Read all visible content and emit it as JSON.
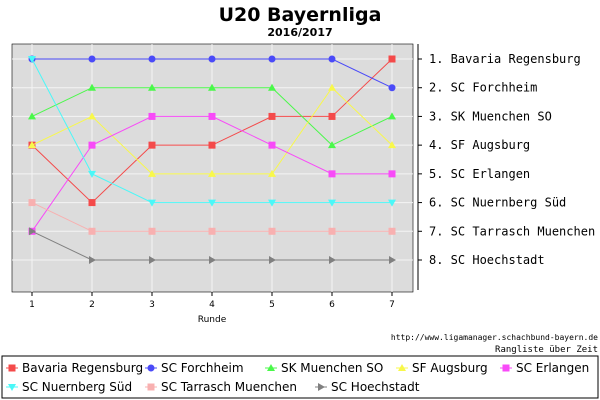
{
  "chart_data": {
    "type": "line",
    "title": "U20 Bayernliga",
    "subtitle": "2016/2017",
    "xlabel": "Runde",
    "ylabel": "",
    "x": [
      1,
      2,
      3,
      4,
      5,
      6,
      7
    ],
    "ylim": [
      1,
      8
    ],
    "y_inverted": true,
    "grid": true,
    "legend_position": "bottom",
    "source_text": "http://www.ligamanager.schachbund-bayern.de",
    "note_text": "Rangliste über Zeit",
    "rank_labels": [
      "1. Bavaria Regensburg",
      "2. SC Forchheim",
      "3. SK Muenchen SO",
      "4. SF Augsburg",
      "5. SC Erlangen",
      "6. SC Nuernberg Süd",
      "7. SC Tarrasch Muenchen",
      "8. SC Hoechstadt"
    ],
    "series": [
      {
        "name": "Bavaria Regensburg",
        "color": "#f44a4a",
        "marker": "square",
        "values": [
          4,
          6,
          4,
          4,
          3,
          3,
          1
        ]
      },
      {
        "name": "SC Forchheim",
        "color": "#4a4af8",
        "marker": "circle",
        "values": [
          1,
          1,
          1,
          1,
          1,
          1,
          2
        ]
      },
      {
        "name": "SK Muenchen SO",
        "color": "#4af84a",
        "marker": "triangle-up",
        "values": [
          3,
          2,
          2,
          2,
          2,
          4,
          3
        ]
      },
      {
        "name": "SF Augsburg",
        "color": "#f8f84a",
        "marker": "triangle-up",
        "values": [
          4,
          3,
          5,
          5,
          5,
          2,
          4
        ]
      },
      {
        "name": "SC Erlangen",
        "color": "#f84af8",
        "marker": "square",
        "values": [
          7,
          4,
          3,
          3,
          4,
          5,
          5
        ]
      },
      {
        "name": "SC Nuernberg Süd",
        "color": "#4af8f8",
        "marker": "triangle-down",
        "values": [
          1,
          5,
          6,
          6,
          6,
          6,
          6
        ]
      },
      {
        "name": "SC Tarrasch Muenchen",
        "color": "#f8b0b0",
        "marker": "square",
        "values": [
          6,
          7,
          7,
          7,
          7,
          7,
          7
        ]
      },
      {
        "name": "SC Hoechstadt",
        "color": "#808080",
        "marker": "triangle-right",
        "values": [
          7,
          8,
          8,
          8,
          8,
          8,
          8
        ]
      }
    ]
  }
}
